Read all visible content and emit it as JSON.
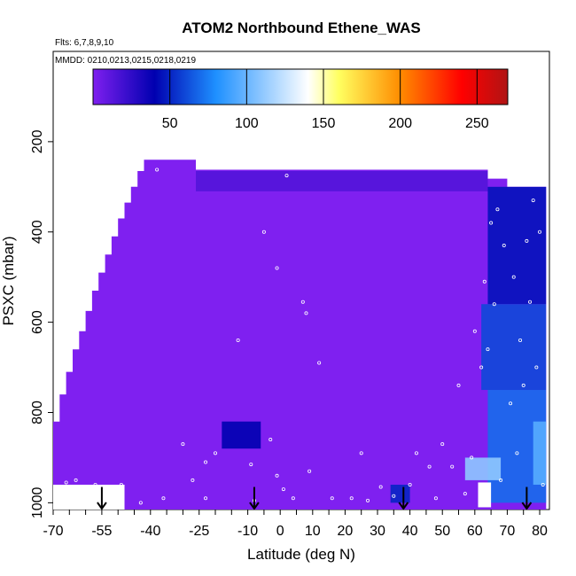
{
  "chart_data": {
    "type": "heatmap",
    "title": "ATOM2 Northbound Ethene_WAS",
    "subtitle_flights": "Flts: 6,7,8,9,10",
    "subtitle_dates": "MMDD: 0210,0213,0215,0218,0219",
    "xlabel": "Latitude (deg N)",
    "ylabel": "PSXC (mbar)",
    "xlim": [
      -70,
      83
    ],
    "ylim": [
      1015,
      0
    ],
    "x_ticks": [
      "-70",
      "-55",
      "-40",
      "-25",
      "-10",
      "0",
      "10",
      "20",
      "30",
      "40",
      "50",
      "60",
      "70",
      "80"
    ],
    "x_tick_values": [
      -70,
      -55,
      -40,
      -25,
      -10,
      0,
      10,
      20,
      30,
      40,
      50,
      60,
      70,
      80
    ],
    "x_minor_step": 5,
    "y_ticks": [
      "200",
      "400",
      "600",
      "800",
      "1000"
    ],
    "y_tick_values": [
      200,
      400,
      600,
      800,
      1000
    ],
    "colorbar": {
      "min": 0,
      "max": 270,
      "tick_labels": [
        "50",
        "100",
        "150",
        "200",
        "250"
      ],
      "tick_values": [
        50,
        100,
        150,
        200,
        250
      ],
      "colors": [
        "#7f1fef",
        "#0000b0",
        "#1e90ff",
        "#ffffff",
        "#ffff60",
        "#ff8c00",
        "#ff0000",
        "#b01414"
      ],
      "color_stops": [
        0,
        40,
        80,
        140,
        160,
        200,
        240,
        270
      ]
    },
    "background_color": "#7f20f0",
    "regions": [
      {
        "name": "upper-troposphere-band",
        "lat": [
          -26,
          64
        ],
        "p": [
          265,
          310
        ],
        "value": 14
      },
      {
        "name": "arctic-upper",
        "lat": [
          64,
          82
        ],
        "p": [
          300,
          560
        ],
        "value": 45
      },
      {
        "name": "arctic-mid",
        "lat": [
          62,
          82
        ],
        "p": [
          560,
          750
        ],
        "value": 60
      },
      {
        "name": "arctic-lower",
        "lat": [
          64,
          82
        ],
        "p": [
          750,
          1000
        ],
        "value": 70
      },
      {
        "name": "arctic-boundary-layer",
        "lat": [
          57,
          68
        ],
        "p": [
          900,
          950
        ],
        "value": 110
      },
      {
        "name": "arctic-surface-plume",
        "lat": [
          78,
          82
        ],
        "p": [
          820,
          960
        ],
        "value": 95
      },
      {
        "name": "tropics-lower-plume",
        "lat": [
          -18,
          -6
        ],
        "p": [
          820,
          880
        ],
        "value": 40
      },
      {
        "name": "midlat-surface-plume",
        "lat": [
          34,
          40
        ],
        "p": [
          960,
          1000
        ],
        "value": 50
      }
    ],
    "missing_regions": [
      {
        "lat": [
          -70,
          -48
        ],
        "p": [
          960,
          1015
        ]
      },
      {
        "lat": [
          61,
          65
        ],
        "p": [
          955,
          1010
        ]
      }
    ],
    "sample_points": [
      [
        -66,
        955
      ],
      [
        -63,
        950
      ],
      [
        -57,
        960
      ],
      [
        -49,
        960
      ],
      [
        -43,
        1000
      ],
      [
        -38,
        262
      ],
      [
        -36,
        990
      ],
      [
        -30,
        870
      ],
      [
        -27,
        950
      ],
      [
        -23,
        990
      ],
      [
        -23,
        910
      ],
      [
        -20,
        890
      ],
      [
        -13,
        640
      ],
      [
        -9,
        915
      ],
      [
        -8,
        995
      ],
      [
        -5,
        400
      ],
      [
        -3,
        860
      ],
      [
        -1,
        480
      ],
      [
        -1,
        940
      ],
      [
        1,
        970
      ],
      [
        2,
        275
      ],
      [
        4,
        990
      ],
      [
        7,
        555
      ],
      [
        8,
        580
      ],
      [
        9,
        930
      ],
      [
        12,
        690
      ],
      [
        16,
        990
      ],
      [
        22,
        990
      ],
      [
        25,
        890
      ],
      [
        27,
        995
      ],
      [
        31,
        965
      ],
      [
        35,
        985
      ],
      [
        40,
        960
      ],
      [
        42,
        890
      ],
      [
        46,
        920
      ],
      [
        48,
        990
      ],
      [
        50,
        870
      ],
      [
        53,
        920
      ],
      [
        55,
        740
      ],
      [
        57,
        980
      ],
      [
        59,
        900
      ],
      [
        60,
        620
      ],
      [
        62,
        700
      ],
      [
        64,
        660
      ],
      [
        66,
        560
      ],
      [
        67,
        350
      ],
      [
        69,
        430
      ],
      [
        70,
        270
      ],
      [
        71,
        780
      ],
      [
        72,
        500
      ],
      [
        74,
        640
      ],
      [
        75,
        740
      ],
      [
        76,
        420
      ],
      [
        77,
        555
      ],
      [
        78,
        330
      ],
      [
        79,
        700
      ],
      [
        80,
        400
      ],
      [
        81,
        960
      ],
      [
        73,
        890
      ],
      [
        68,
        950
      ],
      [
        65,
        380
      ],
      [
        63,
        510
      ]
    ],
    "arrows_lat": [
      -55,
      -8,
      38,
      76
    ],
    "coverage_left_edge": [
      [
        -42,
        215
      ],
      [
        -44,
        265
      ],
      [
        -46,
        300
      ],
      [
        -48,
        335
      ],
      [
        -50,
        370
      ],
      [
        -52,
        410
      ],
      [
        -54,
        450
      ],
      [
        -56,
        490
      ],
      [
        -58,
        530
      ],
      [
        -60,
        575
      ],
      [
        -62,
        620
      ],
      [
        -64,
        660
      ],
      [
        -66,
        710
      ],
      [
        -68,
        760
      ],
      [
        -70,
        820
      ],
      [
        -70,
        1015
      ]
    ]
  }
}
